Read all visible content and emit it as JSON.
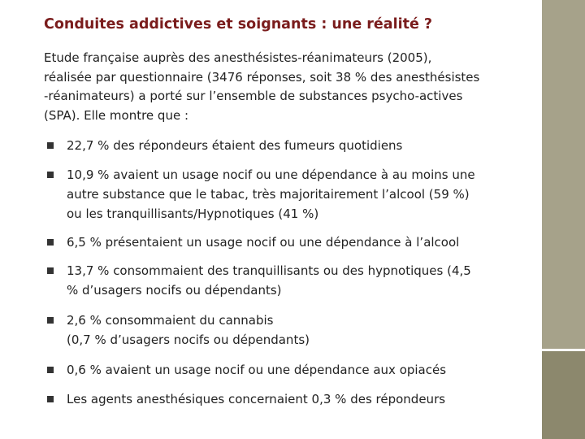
{
  "title": "Conduites addictives et soignants : une réalité ?",
  "intro": [
    "Etude française auprès des anesthésistes-réanimateurs (2005),",
    "réalisée par questionnaire (3476 réponses, soit 38 % des anesthésistes",
    "-réanimateurs) a porté sur l’ensemble de substances psycho-actives",
    "(SPA). Elle montre que :"
  ],
  "bullets": [
    [
      "22,7 % des répondeurs étaient des fumeurs quotidiens"
    ],
    [
      "10,9 % avaient un usage nocif ou une dépendance à au moins une",
      "autre substance que le tabac, très majoritairement l’alcool (59 %)",
      "ou les tranquillisants/Hypnotiques (41 %)"
    ],
    [
      "6,5 % présentaient un usage nocif ou une dépendance à l’alcool"
    ],
    [
      "13,7 % consommaient des tranquillisants ou des hypnotiques (4,5",
      "% d’usagers nocifs ou dépendants)"
    ],
    [
      "2,6 % consommaient du cannabis",
      "(0,7 % d’usagers nocifs ou dépendants)"
    ],
    [
      "0,6 % avaient un usage nocif ou une dépendance aux opiacés"
    ],
    [
      "Les agents anesthésiques concernaient 0,3 % des répondeurs"
    ]
  ]
}
